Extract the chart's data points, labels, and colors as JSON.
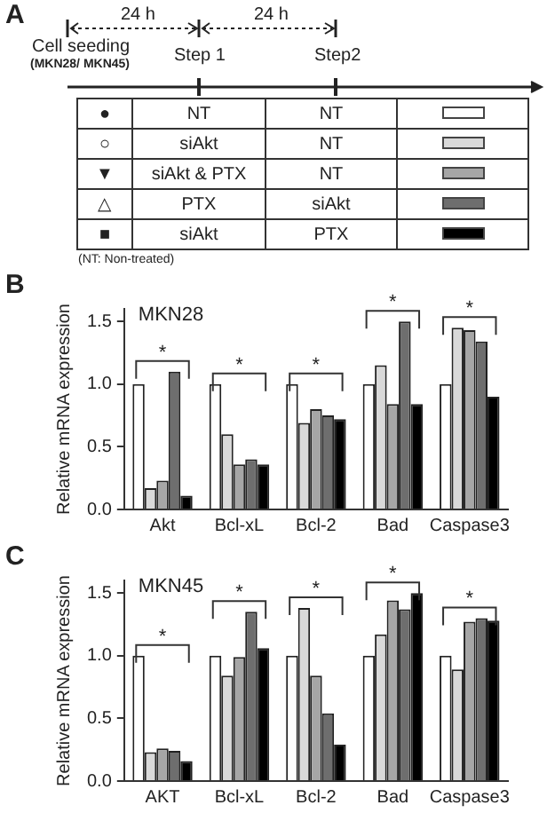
{
  "chart_data": [
    {
      "type": "other",
      "title": "A",
      "colors": [
        "#ffffff",
        "#d9d9d9",
        "#a6a6a6",
        "#6e6e6e",
        "#000000"
      ],
      "annotations": [
        "24 h",
        "24 h",
        "Cell seeding",
        "(MKN28/ MKN45)",
        "Step 1",
        "Step2",
        "●",
        "NT",
        "NT",
        "○",
        "siAkt",
        "NT",
        "▼",
        "siAkt & PTX",
        "NT",
        "△",
        "PTX",
        "siAkt",
        "■",
        "siAkt",
        "PTX",
        "(NT: Non-treated)"
      ]
    },
    {
      "type": "bar",
      "title": "B",
      "subtitle": "MKN28",
      "ylabel": "Relative mRNA expression",
      "categories": [
        "Akt",
        "Bcl-xL",
        "Bcl-2",
        "Bad",
        "Caspase3"
      ],
      "series": [
        {
          "color": "#ffffff",
          "values": [
            1.0,
            1.0,
            1.0,
            1.0,
            1.0
          ]
        },
        {
          "color": "#d9d9d9",
          "values": [
            0.17,
            0.6,
            0.69,
            1.15,
            1.45
          ]
        },
        {
          "color": "#a6a6a6",
          "values": [
            0.23,
            0.36,
            0.8,
            0.84,
            1.43
          ]
        },
        {
          "color": "#6e6e6e",
          "values": [
            1.1,
            0.4,
            0.75,
            1.5,
            1.34
          ]
        },
        {
          "color": "#000000",
          "values": [
            0.11,
            0.36,
            0.72,
            0.84,
            0.9
          ]
        }
      ],
      "ylim": [
        0,
        1.6
      ],
      "yticks": [
        {
          "value": 0,
          "label": "0.0"
        },
        {
          "value": 0.5,
          "label": "0.5"
        },
        {
          "value": 1,
          "label": "1.0"
        },
        {
          "value": 1.5,
          "label": "1.5"
        }
      ],
      "grid": false,
      "legend": false,
      "annotations": [
        "*",
        "*",
        "*",
        "*",
        "*"
      ]
    },
    {
      "type": "bar",
      "title": "C",
      "subtitle": "MKN45",
      "ylabel": "Relative mRNA expression",
      "categories": [
        "AKT",
        "Bcl-xL",
        "Bcl-2",
        "Bad",
        "Caspase3"
      ],
      "series": [
        {
          "color": "#ffffff",
          "values": [
            1.0,
            1.0,
            1.0,
            1.0,
            1.0
          ]
        },
        {
          "color": "#d9d9d9",
          "values": [
            0.23,
            0.84,
            1.38,
            1.17,
            0.89
          ]
        },
        {
          "color": "#a6a6a6",
          "values": [
            0.26,
            0.99,
            0.84,
            1.44,
            1.27
          ]
        },
        {
          "color": "#6e6e6e",
          "values": [
            0.24,
            1.35,
            0.54,
            1.37,
            1.3
          ]
        },
        {
          "color": "#000000",
          "values": [
            0.16,
            1.06,
            0.29,
            1.5,
            1.28
          ]
        }
      ],
      "ylim": [
        0,
        1.6
      ],
      "yticks": [
        {
          "value": 0,
          "label": "0.0"
        },
        {
          "value": 0.5,
          "label": "0.5"
        },
        {
          "value": 1,
          "label": "1.0"
        },
        {
          "value": 1.5,
          "label": "1.5"
        }
      ],
      "grid": false,
      "legend": false,
      "annotations": [
        "*",
        "*",
        "*",
        "*",
        "*"
      ]
    }
  ]
}
